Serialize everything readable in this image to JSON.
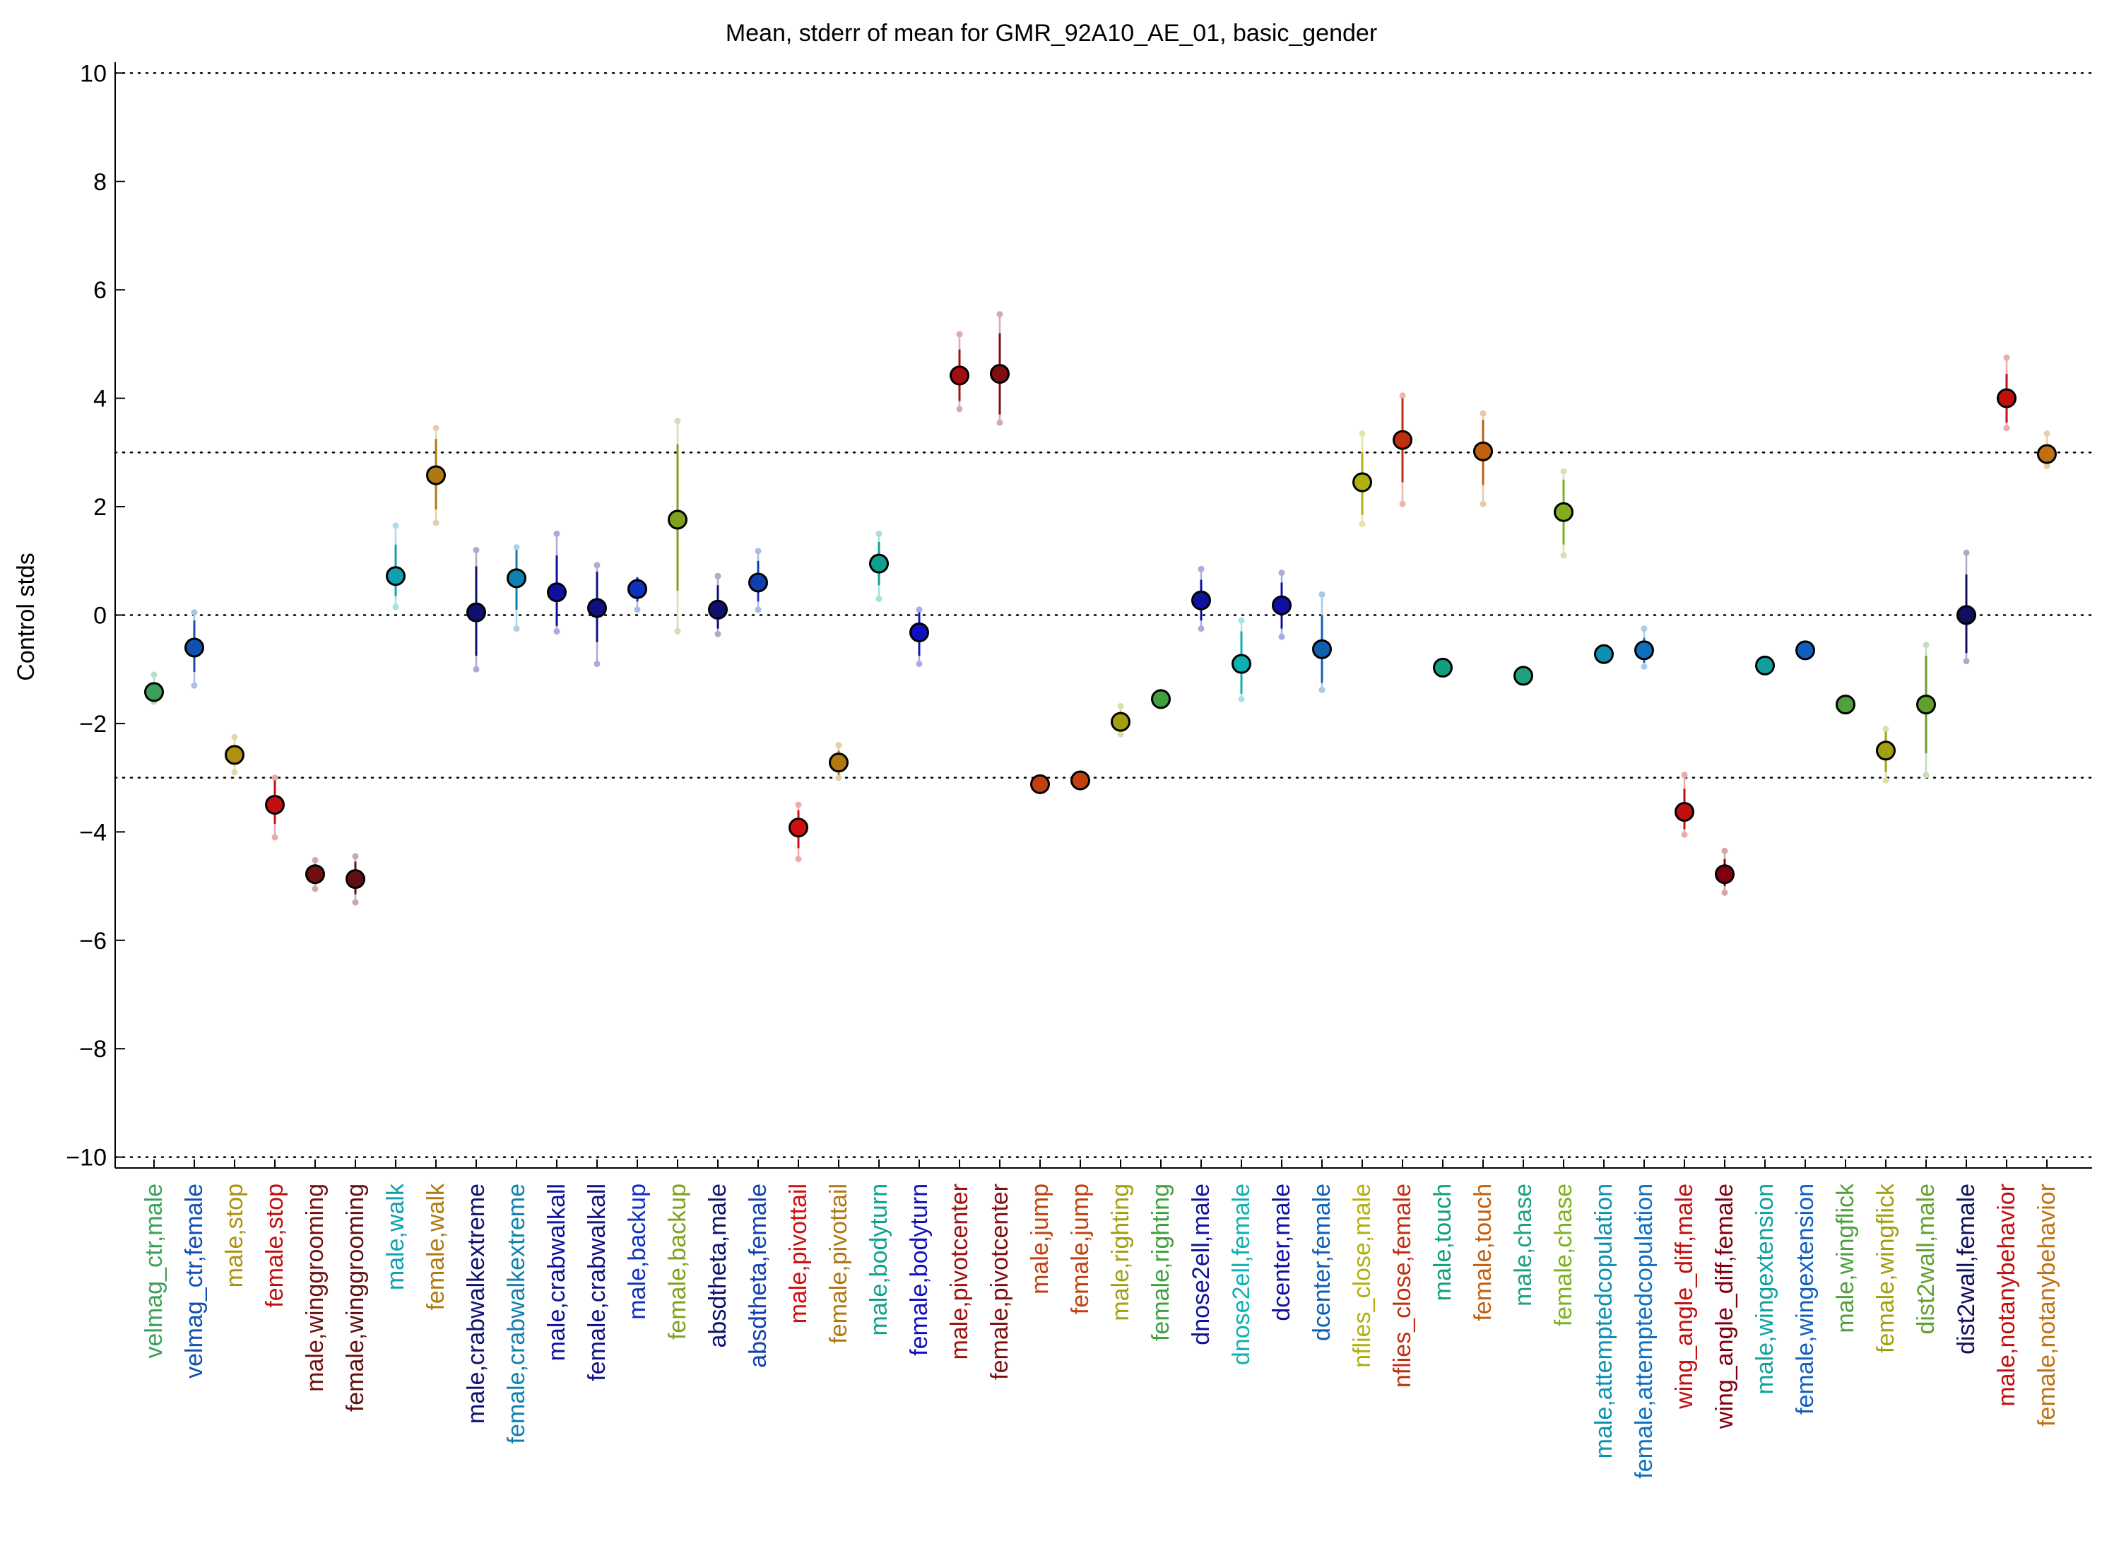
{
  "chart_data": {
    "type": "scatter",
    "title": "Mean, stderr of mean for GMR_92A10_AE_01, basic_gender",
    "xlabel": "",
    "ylabel": "Control stds",
    "ylim": [
      -10.2,
      10.2
    ],
    "yticks": [
      -10,
      -8,
      -6,
      -4,
      -2,
      0,
      2,
      4,
      6,
      8,
      10
    ],
    "ytick_labels": [
      "−10",
      "−8",
      "−6",
      "−4",
      "−2",
      "0",
      "2",
      "4",
      "6",
      "8",
      "10"
    ],
    "reference_lines": [
      10,
      3,
      0,
      -3,
      -10
    ],
    "grid": false,
    "legend": "none",
    "points": [
      {
        "label": "velmag_ctr,male",
        "mean": -1.42,
        "err_low": -1.55,
        "err_high": -1.32,
        "ext_low": -1.6,
        "ext_high": -1.1,
        "color": "#3aa05a"
      },
      {
        "label": "velmag_ctr,female",
        "mean": -0.6,
        "err_low": -1.05,
        "err_high": -0.1,
        "ext_low": -1.3,
        "ext_high": 0.05,
        "color": "#1050b0"
      },
      {
        "label": "male,stop",
        "mean": -2.58,
        "err_low": -2.75,
        "err_high": -2.4,
        "ext_low": -2.9,
        "ext_high": -2.25,
        "color": "#b09010"
      },
      {
        "label": "female,stop",
        "mean": -3.5,
        "err_low": -3.85,
        "err_high": -3.05,
        "ext_low": -4.1,
        "ext_high": -3.0,
        "color": "#c01010"
      },
      {
        "label": "male,winggrooming",
        "mean": -4.78,
        "err_low": -4.95,
        "err_high": -4.6,
        "ext_low": -5.05,
        "ext_high": -4.52,
        "color": "#701010"
      },
      {
        "label": "female,winggrooming",
        "mean": -4.87,
        "err_low": -5.15,
        "err_high": -4.55,
        "ext_low": -5.3,
        "ext_high": -4.45,
        "color": "#601010"
      },
      {
        "label": "male,walk",
        "mean": 0.72,
        "err_low": 0.35,
        "err_high": 1.3,
        "ext_low": 0.15,
        "ext_high": 1.65,
        "color": "#10a0b0"
      },
      {
        "label": "female,walk",
        "mean": 2.58,
        "err_low": 1.95,
        "err_high": 3.25,
        "ext_low": 1.7,
        "ext_high": 3.45,
        "color": "#b07810"
      },
      {
        "label": "male,crabwalkextreme",
        "mean": 0.05,
        "err_low": -0.75,
        "err_high": 0.9,
        "ext_low": -1.0,
        "ext_high": 1.2,
        "color": "#101070"
      },
      {
        "label": "female,crabwalkextreme",
        "mean": 0.68,
        "err_low": 0.1,
        "err_high": 1.2,
        "ext_low": -0.25,
        "ext_high": 1.25,
        "color": "#1080b0"
      },
      {
        "label": "male,crabwalkall",
        "mean": 0.42,
        "err_low": -0.2,
        "err_high": 1.1,
        "ext_low": -0.3,
        "ext_high": 1.5,
        "color": "#1010a0"
      },
      {
        "label": "female,crabwalkall",
        "mean": 0.13,
        "err_low": -0.5,
        "err_high": 0.8,
        "ext_low": -0.9,
        "ext_high": 0.92,
        "color": "#101080"
      },
      {
        "label": "male,backup",
        "mean": 0.48,
        "err_low": 0.25,
        "err_high": 0.7,
        "ext_low": 0.1,
        "ext_high": 0.62,
        "color": "#1030c0"
      },
      {
        "label": "female,backup",
        "mean": 1.76,
        "err_low": 0.45,
        "err_high": 3.15,
        "ext_low": -0.3,
        "ext_high": 3.58,
        "color": "#80a020"
      },
      {
        "label": "absdtheta,male",
        "mean": 0.1,
        "err_low": -0.25,
        "err_high": 0.55,
        "ext_low": -0.35,
        "ext_high": 0.72,
        "color": "#101070"
      },
      {
        "label": "absdtheta,female",
        "mean": 0.6,
        "err_low": 0.25,
        "err_high": 1.0,
        "ext_low": 0.1,
        "ext_high": 1.18,
        "color": "#1040b0"
      },
      {
        "label": "male,pivottail",
        "mean": -3.92,
        "err_low": -4.3,
        "err_high": -3.6,
        "ext_low": -4.5,
        "ext_high": -3.5,
        "color": "#d01010"
      },
      {
        "label": "female,pivottail",
        "mean": -2.72,
        "err_low": -2.95,
        "err_high": -2.5,
        "ext_low": -3.0,
        "ext_high": -2.4,
        "color": "#b07810"
      },
      {
        "label": "male,bodyturn",
        "mean": 0.95,
        "err_low": 0.55,
        "err_high": 1.35,
        "ext_low": 0.3,
        "ext_high": 1.5,
        "color": "#10a090"
      },
      {
        "label": "female,bodyturn",
        "mean": -0.32,
        "err_low": -0.75,
        "err_high": 0.05,
        "ext_low": -0.9,
        "ext_high": 0.1,
        "color": "#1010c0"
      },
      {
        "label": "male,pivotcenter",
        "mean": 4.42,
        "err_low": 3.95,
        "err_high": 4.9,
        "ext_low": 3.8,
        "ext_high": 5.18,
        "color": "#a01010"
      },
      {
        "label": "female,pivotcenter",
        "mean": 4.45,
        "err_low": 3.7,
        "err_high": 5.2,
        "ext_low": 3.55,
        "ext_high": 5.55,
        "color": "#801010"
      },
      {
        "label": "male,jump",
        "mean": -3.12,
        "err_low": -3.15,
        "err_high": -3.09,
        "ext_low": -3.15,
        "ext_high": -3.09,
        "color": "#c04010"
      },
      {
        "label": "female,jump",
        "mean": -3.05,
        "err_low": -3.08,
        "err_high": -3.02,
        "ext_low": -3.08,
        "ext_high": -3.02,
        "color": "#c04010"
      },
      {
        "label": "male,righting",
        "mean": -1.97,
        "err_low": -2.15,
        "err_high": -1.78,
        "ext_low": -2.2,
        "ext_high": -1.68,
        "color": "#a0a010"
      },
      {
        "label": "female,righting",
        "mean": -1.55,
        "err_low": -1.58,
        "err_high": -1.52,
        "ext_low": -1.58,
        "ext_high": -1.52,
        "color": "#40a040"
      },
      {
        "label": "dnose2ell,male",
        "mean": 0.27,
        "err_low": -0.1,
        "err_high": 0.65,
        "ext_low": -0.25,
        "ext_high": 0.85,
        "color": "#1010a0"
      },
      {
        "label": "dnose2ell,female",
        "mean": -0.9,
        "err_low": -1.45,
        "err_high": -0.3,
        "ext_low": -1.55,
        "ext_high": -0.1,
        "color": "#10b0b0"
      },
      {
        "label": "dcenter,male",
        "mean": 0.18,
        "err_low": -0.25,
        "err_high": 0.6,
        "ext_low": -0.4,
        "ext_high": 0.78,
        "color": "#1010a0"
      },
      {
        "label": "dcenter,female",
        "mean": -0.63,
        "err_low": -1.25,
        "err_high": 0.0,
        "ext_low": -1.38,
        "ext_high": 0.38,
        "color": "#1060b0"
      },
      {
        "label": "nflies_close,male",
        "mean": 2.45,
        "err_low": 1.85,
        "err_high": 3.0,
        "ext_low": 1.68,
        "ext_high": 3.35,
        "color": "#b0b010"
      },
      {
        "label": "nflies_close,female",
        "mean": 3.23,
        "err_low": 2.45,
        "err_high": 4.0,
        "ext_low": 2.05,
        "ext_high": 4.05,
        "color": "#c03010"
      },
      {
        "label": "male,touch",
        "mean": -0.97,
        "err_low": -1.0,
        "err_high": -0.94,
        "ext_low": -1.0,
        "ext_high": -0.94,
        "color": "#10a080"
      },
      {
        "label": "female,touch",
        "mean": 3.02,
        "err_low": 2.4,
        "err_high": 3.6,
        "ext_low": 2.05,
        "ext_high": 3.72,
        "color": "#c06010"
      },
      {
        "label": "male,chase",
        "mean": -1.12,
        "err_low": -1.15,
        "err_high": -1.09,
        "ext_low": -1.15,
        "ext_high": -1.09,
        "color": "#20a080"
      },
      {
        "label": "female,chase",
        "mean": 1.9,
        "err_low": 1.3,
        "err_high": 2.5,
        "ext_low": 1.1,
        "ext_high": 2.65,
        "color": "#80b020"
      },
      {
        "label": "male,attemptedcopulation",
        "mean": -0.72,
        "err_low": -0.75,
        "err_high": -0.69,
        "ext_low": -0.75,
        "ext_high": -0.69,
        "color": "#1090b0"
      },
      {
        "label": "female,attemptedcopulation",
        "mean": -0.65,
        "err_low": -0.88,
        "err_high": -0.42,
        "ext_low": -0.95,
        "ext_high": -0.25,
        "color": "#1070c0"
      },
      {
        "label": "wing_angle_diff,male",
        "mean": -3.63,
        "err_low": -3.95,
        "err_high": -3.2,
        "ext_low": -4.05,
        "ext_high": -2.95,
        "color": "#c01010"
      },
      {
        "label": "wing_angle_diff,female",
        "mean": -4.78,
        "err_low": -5.0,
        "err_high": -4.5,
        "ext_low": -5.12,
        "ext_high": -4.35,
        "color": "#800010"
      },
      {
        "label": "male,wingextension",
        "mean": -0.93,
        "err_low": -0.96,
        "err_high": -0.9,
        "ext_low": -0.96,
        "ext_high": -0.9,
        "color": "#10a0a0"
      },
      {
        "label": "female,wingextension",
        "mean": -0.65,
        "err_low": -0.68,
        "err_high": -0.62,
        "ext_low": -0.68,
        "ext_high": -0.62,
        "color": "#1060c0"
      },
      {
        "label": "male,wingflick",
        "mean": -1.65,
        "err_low": -1.68,
        "err_high": -1.62,
        "ext_low": -1.68,
        "ext_high": -1.62,
        "color": "#50a040"
      },
      {
        "label": "female,wingflick",
        "mean": -2.5,
        "err_low": -2.9,
        "err_high": -2.15,
        "ext_low": -3.05,
        "ext_high": -2.1,
        "color": "#a0a010"
      },
      {
        "label": "dist2wall,male",
        "mean": -1.65,
        "err_low": -2.55,
        "err_high": -0.75,
        "ext_low": -2.95,
        "ext_high": -0.55,
        "color": "#60a030"
      },
      {
        "label": "dist2wall,female",
        "mean": 0.0,
        "err_low": -0.7,
        "err_high": 0.75,
        "ext_low": -0.85,
        "ext_high": 1.15,
        "color": "#101060"
      },
      {
        "label": "male,notanybehavior",
        "mean": 4.0,
        "err_low": 3.55,
        "err_high": 4.45,
        "ext_low": 3.45,
        "ext_high": 4.75,
        "color": "#c01010"
      },
      {
        "label": "female,notanybehavior",
        "mean": 2.97,
        "err_low": 2.8,
        "err_high": 3.15,
        "ext_low": 2.75,
        "ext_high": 3.35,
        "color": "#c07010"
      }
    ]
  }
}
